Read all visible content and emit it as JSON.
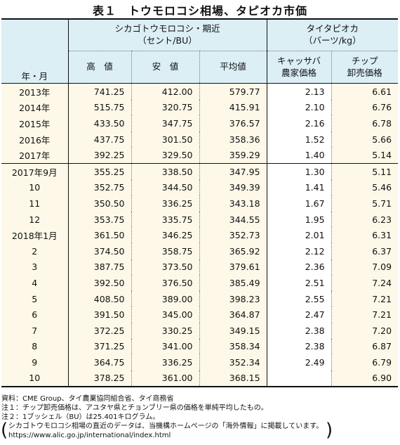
{
  "title": "表１　トウモロコシ相場、タピオカ市価",
  "header": {
    "row_label": "年・月",
    "corn_group": "シカゴトウモロコシ・期近",
    "corn_unit": "（セント/BU）",
    "tapioca_group": "タイタピオカ",
    "tapioca_unit": "（バーツ/kg）",
    "high": "高　値",
    "low": "安　値",
    "avg": "平均値",
    "cassava_1": "キャッサバ",
    "cassava_2": "農家価格",
    "chip_1": "チップ",
    "chip_2": "卸売価格"
  },
  "annual_rows": [
    {
      "label": "2013年",
      "high": "741.25",
      "low": "412.00",
      "avg": "579.77",
      "cassava": "2.13",
      "chip": "6.61"
    },
    {
      "label": "2014年",
      "high": "515.75",
      "low": "320.75",
      "avg": "415.91",
      "cassava": "2.10",
      "chip": "6.76"
    },
    {
      "label": "2015年",
      "high": "433.50",
      "low": "347.75",
      "avg": "376.57",
      "cassava": "2.16",
      "chip": "6.78"
    },
    {
      "label": "2016年",
      "high": "437.75",
      "low": "301.50",
      "avg": "358.36",
      "cassava": "1.52",
      "chip": "5.66"
    },
    {
      "label": "2017年",
      "high": "392.25",
      "low": "329.50",
      "avg": "359.29",
      "cassava": "1.40",
      "chip": "5.14"
    }
  ],
  "monthly_rows": [
    {
      "label": "2017年9月",
      "high": "355.25",
      "low": "338.50",
      "avg": "347.95",
      "cassava": "1.30",
      "chip": "5.11"
    },
    {
      "label": "10",
      "high": "352.75",
      "low": "344.50",
      "avg": "349.39",
      "cassava": "1.41",
      "chip": "5.46"
    },
    {
      "label": "11",
      "high": "350.50",
      "low": "336.25",
      "avg": "343.18",
      "cassava": "1.67",
      "chip": "5.71"
    },
    {
      "label": "12",
      "high": "353.75",
      "low": "335.75",
      "avg": "344.55",
      "cassava": "1.95",
      "chip": "6.23"
    },
    {
      "label": "2018年1月",
      "high": "361.50",
      "low": "346.25",
      "avg": "352.73",
      "cassava": "2.01",
      "chip": "6.31"
    },
    {
      "label": "2",
      "high": "374.50",
      "low": "358.75",
      "avg": "365.92",
      "cassava": "2.12",
      "chip": "6.37"
    },
    {
      "label": "3",
      "high": "387.75",
      "low": "373.50",
      "avg": "379.61",
      "cassava": "2.36",
      "chip": "7.09"
    },
    {
      "label": "4",
      "high": "392.50",
      "low": "376.50",
      "avg": "385.49",
      "cassava": "2.51",
      "chip": "7.24"
    },
    {
      "label": "5",
      "high": "408.50",
      "low": "389.00",
      "avg": "398.23",
      "cassava": "2.55",
      "chip": "7.21"
    },
    {
      "label": "6",
      "high": "391.50",
      "low": "345.00",
      "avg": "364.87",
      "cassava": "2.47",
      "chip": "7.21"
    },
    {
      "label": "7",
      "high": "372.25",
      "low": "330.25",
      "avg": "349.15",
      "cassava": "2.38",
      "chip": "7.20"
    },
    {
      "label": "8",
      "high": "371.25",
      "low": "341.00",
      "avg": "358.34",
      "cassava": "2.38",
      "chip": "6.87"
    },
    {
      "label": "9",
      "high": "364.75",
      "low": "336.25",
      "avg": "352.34",
      "cassava": "2.49",
      "chip": "6.79"
    },
    {
      "label": "10",
      "high": "378.25",
      "low": "361.00",
      "avg": "368.15",
      "cassava": "",
      "chip": "6.90"
    }
  ],
  "notes": {
    "source": "資料：CME Group、タイ農業協同組合省、タイ商務省",
    "note1": "注１：チップ卸売価格は、アユタヤ県とチョンブリー県の価格を単純平均したもの。",
    "note2": "注２：1ブッシェル（BU）は25.401キログラム。",
    "paren_1": "シカゴトウモロコシ相場の直近のデータは、当機構ホームページの「海外情報」に掲載しています。",
    "paren_2": "https://www.alic.go.jp/international/index.html"
  }
}
